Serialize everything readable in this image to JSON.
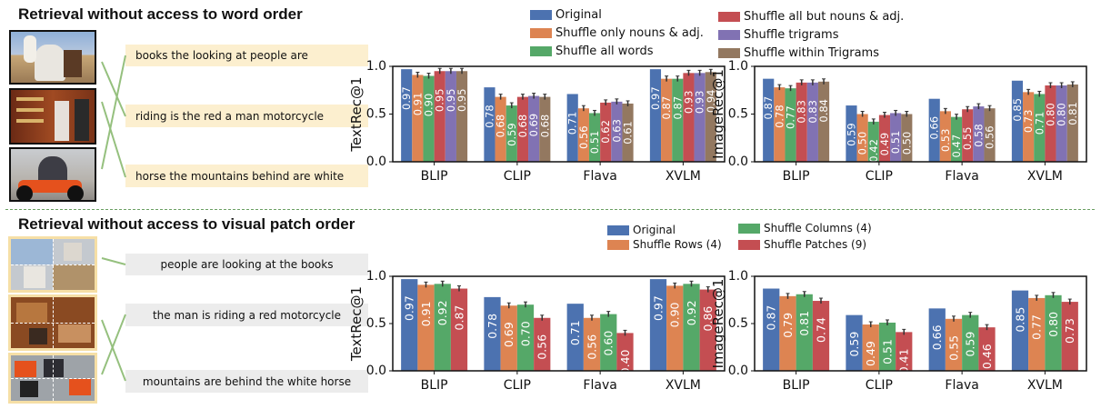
{
  "top_section": {
    "title": "Retrieval without access to word order",
    "phrases": [
      "books the looking at people are",
      "riding is the red a man motorcycle",
      "horse the mountains behind are white"
    ]
  },
  "bottom_section": {
    "title": "Retrieval without access to visual patch order",
    "phrases": [
      "people are looking at the books",
      "the man is riding a red motorcycle",
      "mountains are behind the white horse"
    ]
  },
  "legends": {
    "top": [
      {
        "label": "Original",
        "color": "#4c72b0"
      },
      {
        "label": "Shuffle only nouns & adj.",
        "color": "#dd8452"
      },
      {
        "label": "Shuffle all words",
        "color": "#55a868"
      },
      {
        "label": "Shuffle all but nouns & adj.",
        "color": "#c44e52"
      },
      {
        "label": "Shuffle trigrams",
        "color": "#8172b3"
      },
      {
        "label": "Shuffle within Trigrams",
        "color": "#937860"
      }
    ],
    "bottom": [
      {
        "label": "Original",
        "color": "#4c72b0"
      },
      {
        "label": "Shuffle Rows (4)",
        "color": "#dd8452"
      },
      {
        "label": "Shuffle Columns (4)",
        "color": "#55a868"
      },
      {
        "label": "Shuffle Patches (9)",
        "color": "#c44e52"
      }
    ]
  },
  "chart_data": [
    {
      "type": "bar",
      "ylabel": "TextRec@1",
      "ylim": [
        0,
        1.0
      ],
      "yticks": [
        "0.0",
        "0.5",
        "1.0"
      ],
      "categories": [
        "BLIP",
        "CLIP",
        "Flava",
        "XVLM"
      ],
      "series": [
        {
          "name": "Original",
          "values": [
            0.97,
            0.78,
            0.71,
            0.97
          ]
        },
        {
          "name": "Shuffle only nouns & adj.",
          "values": [
            0.91,
            0.68,
            0.56,
            0.87
          ]
        },
        {
          "name": "Shuffle all words",
          "values": [
            0.9,
            0.59,
            0.51,
            0.87
          ]
        },
        {
          "name": "Shuffle all but nouns & adj.",
          "values": [
            0.95,
            0.68,
            0.62,
            0.93
          ]
        },
        {
          "name": "Shuffle trigrams",
          "values": [
            0.95,
            0.69,
            0.63,
            0.93
          ]
        },
        {
          "name": "Shuffle within Trigrams",
          "values": [
            0.95,
            0.68,
            0.61,
            0.94
          ]
        }
      ],
      "value_labels": [
        [
          "0.97",
          "0.91",
          "0.90",
          "0.95",
          "0.95",
          "0.95"
        ],
        [
          "0.78",
          "0.68",
          "0.59",
          "0.68",
          "0.69",
          "0.68"
        ],
        [
          "0.71",
          "0.56",
          "0.51",
          "0.62",
          "0.63",
          "0.61"
        ],
        [
          "0.97",
          "0.87",
          "0.87",
          "0.93",
          "0.93",
          "0.94"
        ]
      ]
    },
    {
      "type": "bar",
      "ylabel": "ImageRec@1",
      "ylim": [
        0,
        1.0
      ],
      "yticks": [
        "0.0",
        "0.5",
        "1.0"
      ],
      "categories": [
        "BLIP",
        "CLIP",
        "Flava",
        "XVLM"
      ],
      "series": [
        {
          "name": "Original",
          "values": [
            0.87,
            0.59,
            0.66,
            0.85
          ]
        },
        {
          "name": "Shuffle only nouns & adj.",
          "values": [
            0.78,
            0.5,
            0.53,
            0.73
          ]
        },
        {
          "name": "Shuffle all words",
          "values": [
            0.77,
            0.42,
            0.47,
            0.71
          ]
        },
        {
          "name": "Shuffle all but nouns & adj.",
          "values": [
            0.83,
            0.49,
            0.55,
            0.8
          ]
        },
        {
          "name": "Shuffle trigrams",
          "values": [
            0.83,
            0.51,
            0.58,
            0.8
          ]
        },
        {
          "name": "Shuffle within Trigrams",
          "values": [
            0.84,
            0.5,
            0.56,
            0.81
          ]
        }
      ],
      "value_labels": [
        [
          "0.87",
          "0.78",
          "0.77",
          "0.83",
          "0.83",
          "0.84"
        ],
        [
          "0.59",
          "0.50",
          "0.42",
          "0.49",
          "0.51",
          "0.50"
        ],
        [
          "0.66",
          "0.53",
          "0.47",
          "0.55",
          "0.58",
          "0.56"
        ],
        [
          "0.85",
          "0.73",
          "0.71",
          "0.80",
          "0.80",
          "0.81"
        ]
      ]
    },
    {
      "type": "bar",
      "ylabel": "TextRec@1",
      "ylim": [
        0,
        1.0
      ],
      "yticks": [
        "0.0",
        "0.5",
        "1.0"
      ],
      "categories": [
        "BLIP",
        "CLIP",
        "Flava",
        "XVLM"
      ],
      "series": [
        {
          "name": "Original",
          "values": [
            0.97,
            0.78,
            0.71,
            0.97
          ]
        },
        {
          "name": "Shuffle Rows (4)",
          "values": [
            0.91,
            0.69,
            0.56,
            0.9
          ]
        },
        {
          "name": "Shuffle Columns (4)",
          "values": [
            0.92,
            0.7,
            0.6,
            0.92
          ]
        },
        {
          "name": "Shuffle Patches (9)",
          "values": [
            0.87,
            0.56,
            0.4,
            0.86
          ]
        }
      ],
      "value_labels": [
        [
          "0.97",
          "0.91",
          "0.92",
          "0.87"
        ],
        [
          "0.78",
          "0.69",
          "0.70",
          "0.56"
        ],
        [
          "0.71",
          "0.56",
          "0.60",
          "0.40"
        ],
        [
          "0.97",
          "0.90",
          "0.92",
          "0.86"
        ]
      ]
    },
    {
      "type": "bar",
      "ylabel": "ImageRec@1",
      "ylim": [
        0,
        1.0
      ],
      "yticks": [
        "0.0",
        "0.5",
        "1.0"
      ],
      "categories": [
        "BLIP",
        "CLIP",
        "Flava",
        "XVLM"
      ],
      "series": [
        {
          "name": "Original",
          "values": [
            0.87,
            0.59,
            0.66,
            0.85
          ]
        },
        {
          "name": "Shuffle Rows (4)",
          "values": [
            0.79,
            0.49,
            0.55,
            0.77
          ]
        },
        {
          "name": "Shuffle Columns (4)",
          "values": [
            0.81,
            0.51,
            0.59,
            0.8
          ]
        },
        {
          "name": "Shuffle Patches (9)",
          "values": [
            0.74,
            0.41,
            0.46,
            0.73
          ]
        }
      ],
      "value_labels": [
        [
          "0.87",
          "0.79",
          "0.81",
          "0.74"
        ],
        [
          "0.59",
          "0.49",
          "0.51",
          "0.41"
        ],
        [
          "0.66",
          "0.55",
          "0.59",
          "0.46"
        ],
        [
          "0.85",
          "0.77",
          "0.80",
          "0.73"
        ]
      ]
    }
  ]
}
